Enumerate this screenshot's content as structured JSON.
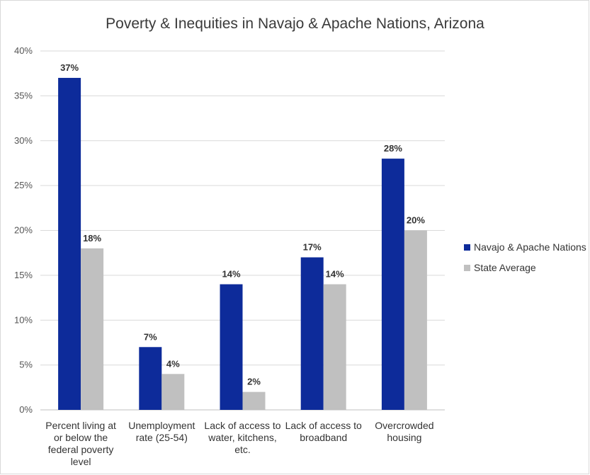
{
  "chart_data": {
    "type": "bar",
    "title": "Poverty & Inequities in Navajo & Apache Nations, Arizona",
    "categories": [
      [
        "Percent living at",
        "or below the",
        "federal poverty",
        "level"
      ],
      [
        "Unemployment",
        "rate (25-54)"
      ],
      [
        "Lack of access to",
        "water, kitchens,",
        "etc."
      ],
      [
        "Lack of access to",
        "broadband"
      ],
      [
        "Overcrowded",
        "housing"
      ]
    ],
    "series": [
      {
        "name": "Navajo & Apache Nations",
        "color": "#0d2b9a",
        "values": [
          37,
          7,
          14,
          17,
          28
        ],
        "labels": [
          "37%",
          "7%",
          "14%",
          "17%",
          "28%"
        ]
      },
      {
        "name": "State Average",
        "color": "#c0c0c0",
        "values": [
          18,
          4,
          2,
          14,
          20
        ],
        "labels": [
          "18%",
          "4%",
          "2%",
          "14%",
          "20%"
        ]
      }
    ],
    "ylim": [
      0,
      40
    ],
    "yticks": [
      "0%",
      "5%",
      "10%",
      "15%",
      "20%",
      "25%",
      "30%",
      "35%",
      "40%"
    ],
    "grid": true,
    "legend_position": "right"
  }
}
